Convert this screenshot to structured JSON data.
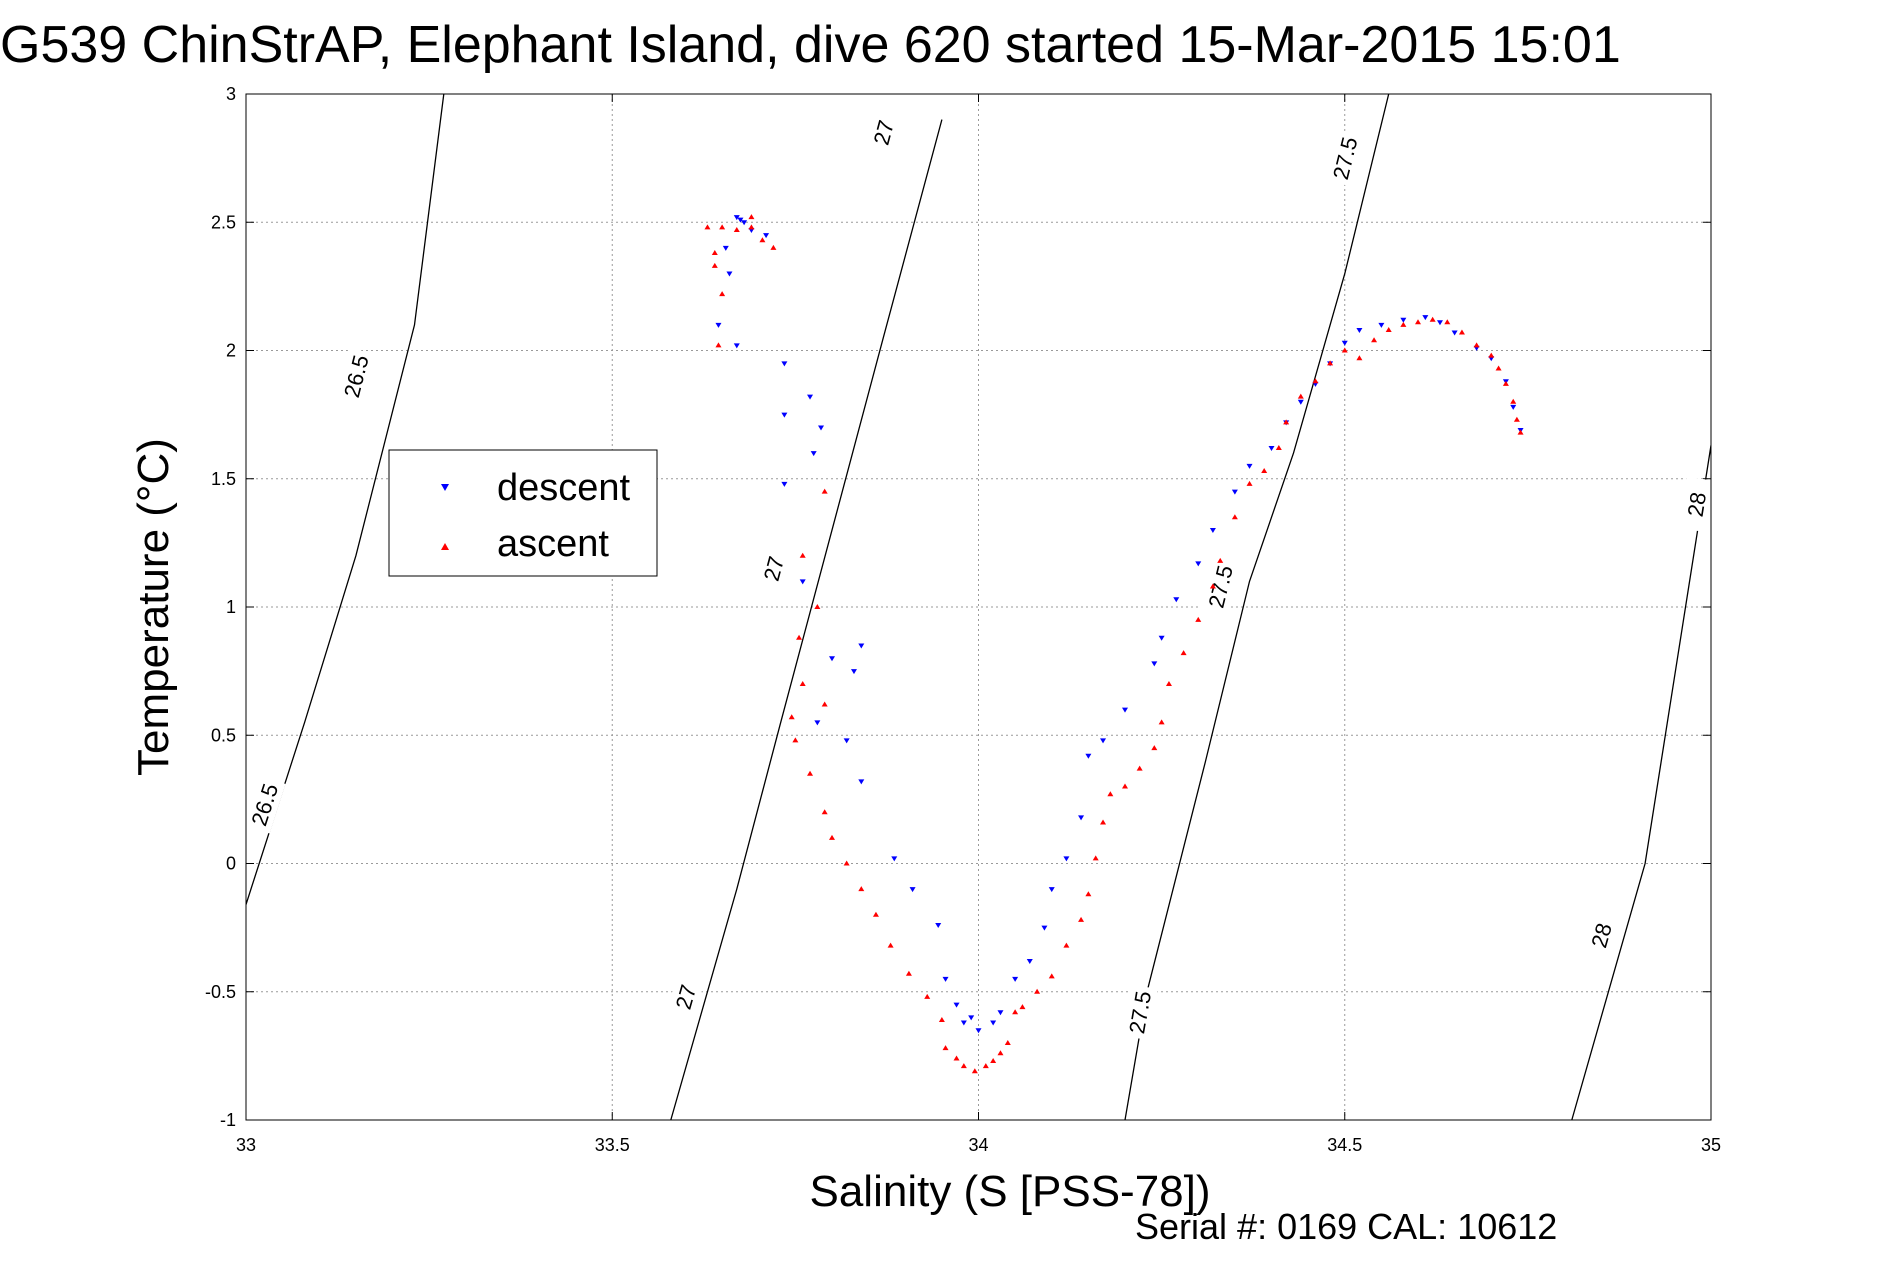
{
  "chart_data": {
    "type": "scatter",
    "title": "G539 ChinStrAP, Elephant Island, dive 620 started 15-Mar-2015 15:01",
    "xlabel": "Salinity (S [PSS-78])",
    "ylabel": "Temperature (°C)",
    "xlim": [
      33,
      35
    ],
    "ylim": [
      -1,
      3
    ],
    "xticks": [
      "33",
      "33.5",
      "34",
      "34.5",
      "35"
    ],
    "yticks": [
      "-1",
      "-0.5",
      "0",
      "0.5",
      "1",
      "1.5",
      "2",
      "2.5",
      "3"
    ],
    "grid": true,
    "legend_position": "left-middle",
    "footer": "Serial #: 0169 CAL: 10612",
    "isopycnals": [
      {
        "value": "26.5",
        "points": [
          [
            33.0,
            -0.16
          ],
          [
            33.08,
            0.55
          ],
          [
            33.15,
            1.2
          ],
          [
            33.23,
            2.1
          ],
          [
            33.27,
            3.0
          ]
        ],
        "labels": [
          {
            "x": 33.025,
            "y": 0.23
          },
          {
            "x": 33.15,
            "y": 1.9
          }
        ]
      },
      {
        "value": "27",
        "points": [
          [
            33.58,
            -1.0
          ],
          [
            33.67,
            -0.1
          ],
          [
            33.73,
            0.55
          ],
          [
            33.8,
            1.3
          ],
          [
            33.87,
            2.05
          ],
          [
            33.95,
            2.9
          ]
        ],
        "labels": [
          {
            "x": 33.6,
            "y": -0.52
          },
          {
            "x": 33.72,
            "y": 1.15
          },
          {
            "x": 33.87,
            "y": 2.85
          }
        ]
      },
      {
        "value": "27.5",
        "points": [
          [
            34.2,
            -1.0
          ],
          [
            34.23,
            -0.5
          ],
          [
            34.31,
            0.4
          ],
          [
            34.37,
            1.1
          ],
          [
            34.43,
            1.6
          ],
          [
            34.5,
            2.3
          ],
          [
            34.56,
            3.0
          ]
        ],
        "labels": [
          {
            "x": 34.22,
            "y": -0.58
          },
          {
            "x": 34.33,
            "y": 1.08
          },
          {
            "x": 34.5,
            "y": 2.75
          }
        ]
      },
      {
        "value": "28",
        "points": [
          [
            34.81,
            -1.0
          ],
          [
            34.86,
            -0.5
          ],
          [
            34.91,
            0.0
          ],
          [
            35.0,
            1.63
          ]
        ],
        "labels": [
          {
            "x": 34.85,
            "y": -0.28
          },
          {
            "x": 34.98,
            "y": 1.4
          }
        ]
      }
    ],
    "series": [
      {
        "name": "descent",
        "color": "#0000ff",
        "marker": "triangle-down",
        "points": [
          [
            33.67,
            2.52
          ],
          [
            33.675,
            2.51
          ],
          [
            33.68,
            2.5
          ],
          [
            33.69,
            2.47
          ],
          [
            33.71,
            2.45
          ],
          [
            33.655,
            2.4
          ],
          [
            33.66,
            2.3
          ],
          [
            33.645,
            2.1
          ],
          [
            33.67,
            2.02
          ],
          [
            33.735,
            1.95
          ],
          [
            33.77,
            1.82
          ],
          [
            33.735,
            1.75
          ],
          [
            33.785,
            1.7
          ],
          [
            33.775,
            1.6
          ],
          [
            33.735,
            1.48
          ],
          [
            33.76,
            1.1
          ],
          [
            33.8,
            0.8
          ],
          [
            33.84,
            0.85
          ],
          [
            33.83,
            0.75
          ],
          [
            33.78,
            0.55
          ],
          [
            33.82,
            0.48
          ],
          [
            33.84,
            0.32
          ],
          [
            33.885,
            0.02
          ],
          [
            33.91,
            -0.1
          ],
          [
            33.945,
            -0.24
          ],
          [
            33.955,
            -0.45
          ],
          [
            33.97,
            -0.55
          ],
          [
            33.98,
            -0.62
          ],
          [
            33.99,
            -0.6
          ],
          [
            34.0,
            -0.65
          ],
          [
            34.02,
            -0.62
          ],
          [
            34.03,
            -0.58
          ],
          [
            34.05,
            -0.45
          ],
          [
            34.07,
            -0.38
          ],
          [
            34.09,
            -0.25
          ],
          [
            34.1,
            -0.1
          ],
          [
            34.12,
            0.02
          ],
          [
            34.14,
            0.18
          ],
          [
            34.15,
            0.42
          ],
          [
            34.17,
            0.48
          ],
          [
            34.2,
            0.6
          ],
          [
            34.24,
            0.78
          ],
          [
            34.25,
            0.88
          ],
          [
            34.27,
            1.03
          ],
          [
            34.3,
            1.17
          ],
          [
            34.32,
            1.3
          ],
          [
            34.35,
            1.45
          ],
          [
            34.37,
            1.55
          ],
          [
            34.4,
            1.62
          ],
          [
            34.42,
            1.72
          ],
          [
            34.44,
            1.8
          ],
          [
            34.46,
            1.87
          ],
          [
            34.48,
            1.95
          ],
          [
            34.5,
            2.03
          ],
          [
            34.52,
            2.08
          ],
          [
            34.55,
            2.1
          ],
          [
            34.58,
            2.12
          ],
          [
            34.61,
            2.13
          ],
          [
            34.63,
            2.11
          ],
          [
            34.65,
            2.07
          ],
          [
            34.68,
            2.01
          ],
          [
            34.7,
            1.97
          ],
          [
            34.72,
            1.88
          ],
          [
            34.73,
            1.78
          ],
          [
            34.74,
            1.69
          ]
        ]
      },
      {
        "name": "ascent",
        "color": "#ff0000",
        "marker": "triangle-up",
        "points": [
          [
            33.63,
            2.48
          ],
          [
            33.65,
            2.48
          ],
          [
            33.67,
            2.47
          ],
          [
            33.69,
            2.48
          ],
          [
            33.705,
            2.43
          ],
          [
            33.72,
            2.4
          ],
          [
            33.64,
            2.38
          ],
          [
            33.64,
            2.33
          ],
          [
            33.65,
            2.22
          ],
          [
            33.645,
            2.02
          ],
          [
            33.69,
            2.52
          ],
          [
            33.79,
            1.45
          ],
          [
            33.76,
            1.2
          ],
          [
            33.78,
            1.0
          ],
          [
            33.755,
            0.88
          ],
          [
            33.76,
            0.7
          ],
          [
            33.745,
            0.57
          ],
          [
            33.79,
            0.62
          ],
          [
            33.75,
            0.48
          ],
          [
            33.77,
            0.35
          ],
          [
            33.79,
            0.2
          ],
          [
            33.8,
            0.1
          ],
          [
            33.82,
            0.0
          ],
          [
            33.84,
            -0.1
          ],
          [
            33.86,
            -0.2
          ],
          [
            33.88,
            -0.32
          ],
          [
            33.905,
            -0.43
          ],
          [
            33.93,
            -0.52
          ],
          [
            33.95,
            -0.61
          ],
          [
            33.955,
            -0.72
          ],
          [
            33.97,
            -0.76
          ],
          [
            33.98,
            -0.79
          ],
          [
            33.995,
            -0.81
          ],
          [
            34.01,
            -0.79
          ],
          [
            34.02,
            -0.77
          ],
          [
            34.03,
            -0.74
          ],
          [
            34.04,
            -0.7
          ],
          [
            34.05,
            -0.58
          ],
          [
            34.06,
            -0.56
          ],
          [
            34.08,
            -0.5
          ],
          [
            34.1,
            -0.44
          ],
          [
            34.12,
            -0.32
          ],
          [
            34.14,
            -0.22
          ],
          [
            34.15,
            -0.12
          ],
          [
            34.16,
            0.02
          ],
          [
            34.17,
            0.16
          ],
          [
            34.18,
            0.27
          ],
          [
            34.2,
            0.3
          ],
          [
            34.22,
            0.37
          ],
          [
            34.24,
            0.45
          ],
          [
            34.25,
            0.55
          ],
          [
            34.26,
            0.7
          ],
          [
            34.28,
            0.82
          ],
          [
            34.3,
            0.95
          ],
          [
            34.32,
            1.08
          ],
          [
            34.33,
            1.18
          ],
          [
            34.35,
            1.35
          ],
          [
            34.37,
            1.48
          ],
          [
            34.39,
            1.53
          ],
          [
            34.41,
            1.62
          ],
          [
            34.42,
            1.72
          ],
          [
            34.44,
            1.82
          ],
          [
            34.46,
            1.88
          ],
          [
            34.48,
            1.95
          ],
          [
            34.5,
            2.0
          ],
          [
            34.52,
            1.97
          ],
          [
            34.54,
            2.04
          ],
          [
            34.56,
            2.08
          ],
          [
            34.58,
            2.1
          ],
          [
            34.6,
            2.11
          ],
          [
            34.62,
            2.12
          ],
          [
            34.64,
            2.11
          ],
          [
            34.66,
            2.07
          ],
          [
            34.68,
            2.02
          ],
          [
            34.7,
            1.98
          ],
          [
            34.71,
            1.93
          ],
          [
            34.72,
            1.87
          ],
          [
            34.73,
            1.8
          ],
          [
            34.735,
            1.73
          ],
          [
            34.74,
            1.68
          ]
        ]
      }
    ]
  }
}
